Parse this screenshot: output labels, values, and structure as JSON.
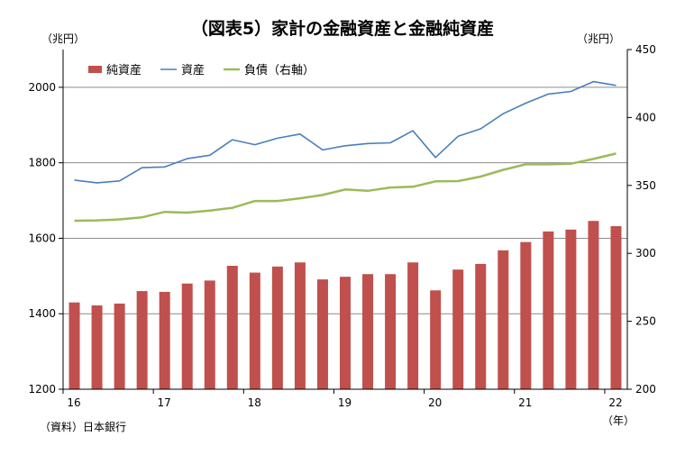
{
  "chart_data": {
    "type": "bar+line",
    "title": "（図表5）家計の金融資産と金融純資産",
    "left_unit": "（兆円）",
    "right_unit": "（兆円）",
    "x_unit": "（年）",
    "source": "（資料）日本銀行",
    "x_tick_labels": [
      "16",
      "17",
      "18",
      "19",
      "20",
      "21",
      "22"
    ],
    "left_axis": {
      "min": 1200,
      "max": 2100,
      "ticks": [
        1200,
        1400,
        1600,
        1800,
        2000
      ]
    },
    "right_axis": {
      "min": 200,
      "max": 450,
      "ticks": [
        200,
        250,
        300,
        350,
        400,
        450
      ]
    },
    "quarters": [
      "16Q1",
      "16Q2",
      "16Q3",
      "16Q4",
      "17Q1",
      "17Q2",
      "17Q3",
      "17Q4",
      "18Q1",
      "18Q2",
      "18Q3",
      "18Q4",
      "19Q1",
      "19Q2",
      "19Q3",
      "19Q4",
      "20Q1",
      "20Q2",
      "20Q3",
      "20Q4",
      "21Q1",
      "21Q2",
      "21Q3",
      "21Q4",
      "22Q1"
    ],
    "series": [
      {
        "name": "純資産",
        "type": "bar",
        "axis": "left",
        "color": "#c0504d",
        "values": [
          1430,
          1422,
          1427,
          1460,
          1458,
          1480,
          1488,
          1527,
          1509,
          1525,
          1536,
          1491,
          1498,
          1505,
          1505,
          1536,
          1462,
          1517,
          1532,
          1568,
          1590,
          1618,
          1623,
          1646,
          1632
        ]
      },
      {
        "name": "資産",
        "type": "line",
        "axis": "left",
        "color": "#4a7ebb",
        "values": [
          1754,
          1747,
          1752,
          1787,
          1789,
          1811,
          1820,
          1861,
          1848,
          1865,
          1876,
          1834,
          1845,
          1851,
          1853,
          1885,
          1814,
          1870,
          1890,
          1930,
          1958,
          1982,
          1989,
          2015,
          2005
        ]
      },
      {
        "name": "負債（右軸）",
        "type": "line",
        "axis": "right",
        "color": "#9bbb59",
        "values": [
          324,
          324.3,
          325,
          326.5,
          330.5,
          330,
          331.5,
          333.5,
          338.5,
          338.5,
          340.5,
          343,
          347,
          346,
          348.5,
          349,
          353,
          353.2,
          356.5,
          361.5,
          365.5,
          365.5,
          366,
          369.5,
          373.5
        ]
      }
    ],
    "grid": true,
    "legend_position": "top-left"
  }
}
